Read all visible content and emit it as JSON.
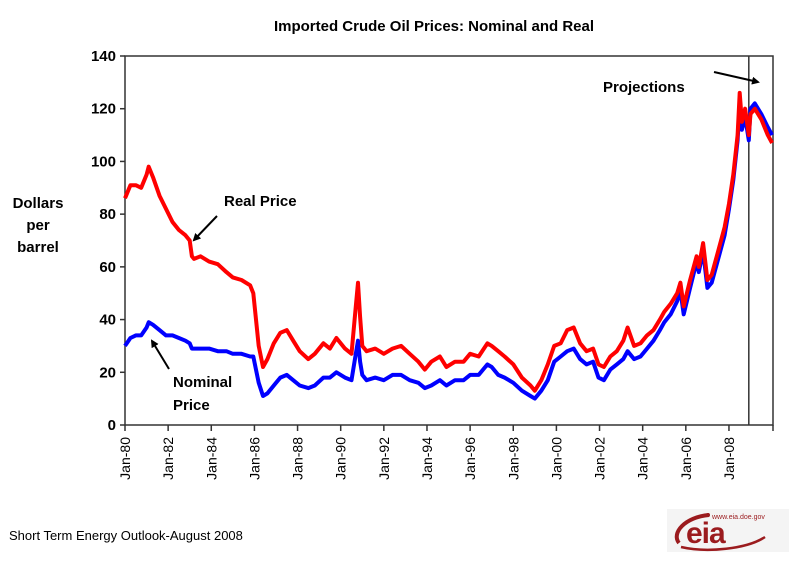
{
  "chart_data": {
    "type": "line",
    "title": "Imported Crude Oil Prices:  Nominal and Real",
    "xlabel": "",
    "ylabel": [
      "Dollars",
      "per",
      "barrel"
    ],
    "ylim": [
      0,
      140
    ],
    "xlim": [
      1980.0,
      2010.0
    ],
    "yticks": [
      0,
      20,
      40,
      60,
      80,
      100,
      120,
      140
    ],
    "xtick_labels": [
      "Jan-80",
      "Jan-82",
      "Jan-84",
      "Jan-86",
      "Jan-88",
      "Jan-90",
      "Jan-92",
      "Jan-94",
      "Jan-96",
      "Jan-98",
      "Jan-00",
      "Jan-02",
      "Jan-04",
      "Jan-06",
      "Jan-08"
    ],
    "xtick_values": [
      1980,
      1982,
      1984,
      1986,
      1988,
      1990,
      1992,
      1994,
      1996,
      1998,
      2000,
      2002,
      2004,
      2006,
      2008
    ],
    "grid": false,
    "legend": "none",
    "projection_start": 2008.92,
    "series": [
      {
        "name": "Real Price",
        "color": "#ff0000",
        "x": [
          1980.0,
          1980.25,
          1980.5,
          1980.75,
          1981.0,
          1981.1,
          1981.3,
          1981.6,
          1981.9,
          1982.2,
          1982.5,
          1982.8,
          1983.0,
          1983.1,
          1983.2,
          1983.5,
          1983.9,
          1984.3,
          1984.7,
          1985.0,
          1985.4,
          1985.8,
          1985.95,
          1986.2,
          1986.4,
          1986.6,
          1986.9,
          1987.2,
          1987.5,
          1987.8,
          1988.1,
          1988.5,
          1988.8,
          1989.2,
          1989.5,
          1989.8,
          1990.2,
          1990.5,
          1990.7,
          1990.8,
          1990.9,
          1991.0,
          1991.2,
          1991.6,
          1992.0,
          1992.4,
          1992.8,
          1993.2,
          1993.6,
          1993.9,
          1994.2,
          1994.6,
          1994.9,
          1995.3,
          1995.7,
          1996.0,
          1996.4,
          1996.8,
          1997.0,
          1997.3,
          1997.6,
          1998.0,
          1998.4,
          1998.8,
          1999.0,
          1999.3,
          1999.6,
          1999.9,
          2000.2,
          2000.5,
          2000.8,
          2001.1,
          2001.4,
          2001.7,
          2001.95,
          2002.2,
          2002.5,
          2002.8,
          2003.1,
          2003.3,
          2003.6,
          2003.9,
          2004.2,
          2004.5,
          2004.8,
          2005.0,
          2005.3,
          2005.6,
          2005.75,
          2005.9,
          2006.2,
          2006.5,
          2006.6,
          2006.8,
          2007.0,
          2007.2,
          2007.5,
          2007.8,
          2008.0,
          2008.2,
          2008.4,
          2008.5,
          2008.6,
          2008.75,
          2008.92,
          2009.0,
          2009.2,
          2009.5,
          2009.8,
          2010.0
        ],
        "y": [
          86,
          91,
          91,
          90,
          95,
          98,
          94,
          87,
          82,
          77,
          74,
          72,
          70,
          64,
          63,
          64,
          62,
          61,
          58,
          56,
          55,
          53,
          50,
          30,
          22,
          25,
          31,
          35,
          36,
          32,
          28,
          25,
          27,
          31,
          29,
          33,
          29,
          27,
          45,
          54,
          41,
          30,
          28,
          29,
          27,
          29,
          30,
          27,
          24,
          21,
          24,
          26,
          22,
          24,
          24,
          27,
          26,
          31,
          30,
          28,
          26,
          23,
          18,
          15,
          13,
          17,
          23,
          30,
          31,
          36,
          37,
          31,
          28,
          29,
          23,
          22,
          26,
          28,
          32,
          37,
          30,
          31,
          34,
          36,
          40,
          43,
          46,
          50,
          54,
          45,
          55,
          64,
          60,
          69,
          55,
          57,
          66,
          75,
          84,
          95,
          110,
          126,
          115,
          120,
          110,
          118,
          120,
          116,
          110,
          107
        ]
      },
      {
        "name": "Nominal Price",
        "color": "#0000ff",
        "x": [
          1980.0,
          1980.25,
          1980.5,
          1980.75,
          1981.0,
          1981.1,
          1981.3,
          1981.6,
          1981.9,
          1982.2,
          1982.5,
          1982.8,
          1983.0,
          1983.1,
          1983.2,
          1983.5,
          1983.9,
          1984.3,
          1984.7,
          1985.0,
          1985.4,
          1985.8,
          1985.95,
          1986.2,
          1986.4,
          1986.6,
          1986.9,
          1987.2,
          1987.5,
          1987.8,
          1988.1,
          1988.5,
          1988.8,
          1989.2,
          1989.5,
          1989.8,
          1990.2,
          1990.5,
          1990.7,
          1990.8,
          1990.9,
          1991.0,
          1991.2,
          1991.6,
          1992.0,
          1992.4,
          1992.8,
          1993.2,
          1993.6,
          1993.9,
          1994.2,
          1994.6,
          1994.9,
          1995.3,
          1995.7,
          1996.0,
          1996.4,
          1996.8,
          1997.0,
          1997.3,
          1997.6,
          1998.0,
          1998.4,
          1998.8,
          1999.0,
          1999.3,
          1999.6,
          1999.9,
          2000.2,
          2000.5,
          2000.8,
          2001.1,
          2001.4,
          2001.7,
          2001.95,
          2002.2,
          2002.5,
          2002.8,
          2003.1,
          2003.3,
          2003.6,
          2003.9,
          2004.2,
          2004.5,
          2004.8,
          2005.0,
          2005.3,
          2005.6,
          2005.75,
          2005.9,
          2006.2,
          2006.5,
          2006.6,
          2006.8,
          2007.0,
          2007.2,
          2007.5,
          2007.8,
          2008.0,
          2008.2,
          2008.4,
          2008.5,
          2008.6,
          2008.75,
          2008.92,
          2009.0,
          2009.2,
          2009.5,
          2009.8,
          2010.0
        ],
        "y": [
          30,
          33,
          34,
          34,
          37,
          39,
          38,
          36,
          34,
          34,
          33,
          32,
          31,
          29,
          29,
          29,
          29,
          28,
          28,
          27,
          27,
          26,
          26,
          16,
          11,
          12,
          15,
          18,
          19,
          17,
          15,
          14,
          15,
          18,
          18,
          20,
          18,
          17,
          27,
          32,
          24,
          19,
          17,
          18,
          17,
          19,
          19,
          17,
          16,
          14,
          15,
          17,
          15,
          17,
          17,
          19,
          19,
          23,
          22,
          19,
          18,
          16,
          13,
          11,
          10,
          13,
          17,
          24,
          26,
          28,
          29,
          25,
          23,
          24,
          18,
          17,
          21,
          23,
          25,
          28,
          25,
          26,
          29,
          32,
          36,
          39,
          42,
          47,
          51,
          42,
          52,
          62,
          58,
          66,
          52,
          54,
          63,
          72,
          82,
          93,
          108,
          122,
          112,
          117,
          108,
          120,
          122,
          118,
          113,
          110
        ]
      }
    ],
    "annotations": [
      {
        "text": "Real Price",
        "arrow_to": "Real Price"
      },
      {
        "text": "Nominal",
        "text2": "Price",
        "arrow_to": "Nominal Price"
      },
      {
        "text": "Projections",
        "arrow_to": "projection region"
      }
    ]
  },
  "footer": {
    "source": "Short Term Energy Outlook-August 2008",
    "logo_text": "eia",
    "logo_url": "www.eia.doe.gov"
  }
}
